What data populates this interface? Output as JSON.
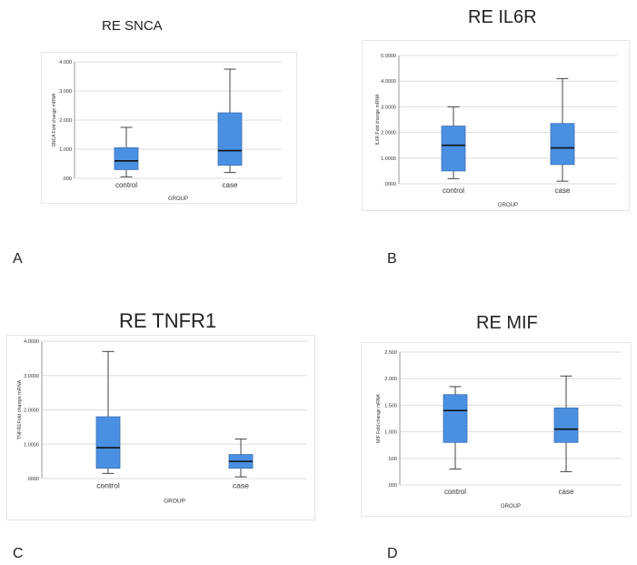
{
  "colors": {
    "box_fill": "#4a90e2",
    "box_stroke": "#3a6fb0",
    "median": "#111111",
    "whisker": "#444444",
    "grid": "#dddddd"
  },
  "panels": [
    {
      "letter": "A",
      "title": "RE SNCA"
    },
    {
      "letter": "B",
      "title": "RE IL6R"
    },
    {
      "letter": "C",
      "title": "RE TNFR1"
    },
    {
      "letter": "D",
      "title": "RE MIF"
    }
  ],
  "chart_data": [
    {
      "type": "box",
      "title": "RE SNCA",
      "xlabel": "GROUP",
      "ylabel": "SNCA Fold change mRNA",
      "ylim": [
        0,
        4
      ],
      "yticks": [
        ".000",
        "1.000",
        "2.000",
        "3.000",
        "4.000"
      ],
      "grid": true,
      "categories": [
        "control",
        "case"
      ],
      "boxes": [
        {
          "min": 0.05,
          "q1": 0.3,
          "median": 0.6,
          "q3": 1.05,
          "max": 1.75
        },
        {
          "min": 0.2,
          "q1": 0.45,
          "median": 0.95,
          "q3": 2.25,
          "max": 3.75
        }
      ]
    },
    {
      "type": "box",
      "title": "RE IL6R",
      "xlabel": "GROUP",
      "ylabel": "IL6R Fold change mRNA",
      "ylim": [
        0,
        5
      ],
      "yticks": [
        ".0000",
        "1.0000",
        "2.0000",
        "3.0000",
        "4.0000",
        "5.0000"
      ],
      "grid": true,
      "categories": [
        "control",
        "case"
      ],
      "boxes": [
        {
          "min": 0.2,
          "q1": 0.5,
          "median": 1.5,
          "q3": 2.25,
          "max": 3.0
        },
        {
          "min": 0.1,
          "q1": 0.75,
          "median": 1.4,
          "q3": 2.35,
          "max": 4.1
        }
      ]
    },
    {
      "type": "box",
      "title": "RE TNFR1",
      "xlabel": "GROUP",
      "ylabel": "TNFR1Fold change mRNA",
      "ylim": [
        0,
        4
      ],
      "yticks": [
        ".0000",
        "1.0000",
        "2.0000",
        "3.0000",
        "4.0000"
      ],
      "grid": true,
      "categories": [
        "control",
        "case"
      ],
      "boxes": [
        {
          "min": 0.15,
          "q1": 0.3,
          "median": 0.9,
          "q3": 1.8,
          "max": 3.7
        },
        {
          "min": 0.05,
          "q1": 0.3,
          "median": 0.5,
          "q3": 0.7,
          "max": 1.15
        }
      ]
    },
    {
      "type": "box",
      "title": "RE MIF",
      "xlabel": "GROUP",
      "ylabel": "MIF Fold change mRNA",
      "ylim": [
        0,
        2.5
      ],
      "yticks": [
        ".000",
        ".500",
        "1.000",
        "1.500",
        "2.000",
        "2.500"
      ],
      "grid": true,
      "categories": [
        "control",
        "case"
      ],
      "boxes": [
        {
          "min": 0.3,
          "q1": 0.8,
          "median": 1.4,
          "q3": 1.7,
          "max": 1.85
        },
        {
          "min": 0.25,
          "q1": 0.8,
          "median": 1.05,
          "q3": 1.45,
          "max": 2.05
        }
      ]
    }
  ]
}
